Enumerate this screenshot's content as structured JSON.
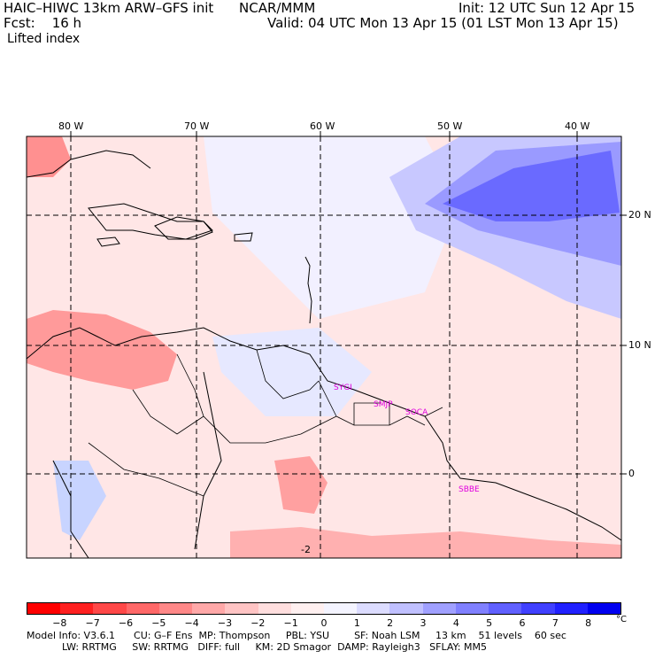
{
  "header": {
    "model_title": "HAIC–HIWC 13km ARW–GFS init",
    "org": "NCAR/MMM",
    "init": "Init: 12 UTC Sun 12 Apr 15",
    "fcst": "Fcst:    16 h",
    "valid": "Valid: 04 UTC Mon 13 Apr 15 (01 LST Mon 13 Apr 15)",
    "field": "Lifted index"
  },
  "map": {
    "lon_labels": [
      "80 W",
      "70 W",
      "60 W",
      "50 W",
      "40 W"
    ],
    "lat_labels": [
      "20 N",
      "10 N",
      "0"
    ],
    "stations": [
      "SYGI",
      "SMJP",
      "SOCA",
      "SBBE"
    ],
    "contour_label": "-2"
  },
  "colorbar": {
    "colors": [
      "#ff0000",
      "#ff2020",
      "#ff4848",
      "#ff6868",
      "#ff8888",
      "#ffa8a8",
      "#ffc4c4",
      "#ffdede",
      "#fff0f0",
      "#f4f4ff",
      "#dcdcff",
      "#c0c0ff",
      "#a0a0ff",
      "#8080ff",
      "#6060ff",
      "#4040ff",
      "#2020ff",
      "#0000f0"
    ],
    "labels": [
      "−8",
      "−7",
      "−6",
      "−5",
      "−4",
      "−3",
      "−2",
      "−1",
      "0",
      "1",
      "2",
      "3",
      "4",
      "5",
      "6",
      "7",
      "8"
    ],
    "unit": "°C"
  },
  "footer": {
    "line1": "Model Info: V3.6.1      CU: G–F Ens  MP: Thompson     PBL: YSU        SF: Noah LSM     13 km    51 levels    60 sec",
    "line2": "LW: RRTMG     SW: RRTMG   DIFF: full     KM: 2D Smagor  DAMP: Rayleigh3   SFLAY: MM5"
  }
}
